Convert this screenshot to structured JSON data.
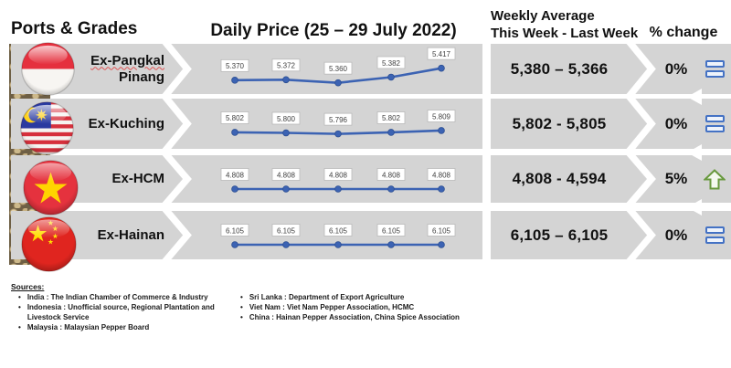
{
  "title": {
    "ports_grades": "Ports & Grades",
    "daily_price": "Daily Price (25 – 29 July 2022)",
    "weekly_avg_line1": "Weekly Average",
    "weekly_avg_line2": "This Week - Last Week",
    "pct_change": "% change"
  },
  "colors": {
    "band_gray": "#d4d4d4",
    "line_blue": "#3c63b3",
    "equal_icon_blue": "#4472c4",
    "up_arrow_green": "#68993e"
  },
  "chart_data": {
    "type": "line",
    "title": "Daily Price (25 – 29 July 2022)",
    "legend": "none",
    "x_axis": "5 trading days, unlabeled ticks",
    "line_color": "#3c63b3",
    "series": [
      {
        "name": "Ex-Pangkal Pinang",
        "name_lines": [
          "Ex-Pangkal",
          "Pinang"
        ],
        "flag": "indonesia",
        "values": [
          5370,
          5372,
          5360,
          5382,
          5417
        ],
        "point_labels": [
          "5.370",
          "5.372",
          "5.360",
          "5.382",
          "5.417"
        ],
        "weekly_average": "5,380 – 5,366",
        "pct_change": "0%",
        "trend": "equal"
      },
      {
        "name": "Ex-Kuching",
        "name_lines": [
          "Ex-Kuching",
          ""
        ],
        "flag": "malaysia",
        "values": [
          5802,
          5800,
          5796,
          5802,
          5809
        ],
        "point_labels": [
          "5.802",
          "5.800",
          "5.796",
          "5.802",
          "5.809"
        ],
        "weekly_average": "5,802 - 5,805",
        "pct_change": "0%",
        "trend": "equal"
      },
      {
        "name": "Ex-HCM",
        "name_lines": [
          "Ex-HCM",
          ""
        ],
        "flag": "vietnam",
        "values": [
          4808,
          4808,
          4808,
          4808,
          4808
        ],
        "point_labels": [
          "4.808",
          "4.808",
          "4.808",
          "4.808",
          "4.808"
        ],
        "weekly_average": "4,808 - 4,594",
        "pct_change": "5%",
        "trend": "up"
      },
      {
        "name": "Ex-Hainan",
        "name_lines": [
          "Ex-Hainan",
          ""
        ],
        "flag": "china",
        "values": [
          6105,
          6105,
          6105,
          6105,
          6105
        ],
        "point_labels": [
          "6.105",
          "6.105",
          "6.105",
          "6.105",
          "6.105"
        ],
        "weekly_average": "6,105 – 6,105",
        "pct_change": "0%",
        "trend": "equal"
      }
    ]
  },
  "footer": {
    "sources_label": "Sources:",
    "left": [
      "India : The Indian Chamber of Commerce & Industry",
      "Indonesia : Unofficial source, Regional Plantation and Livestock Service",
      "Malaysia : Malaysian Pepper Board"
    ],
    "right": [
      "Sri Lanka : Department of Export Agriculture",
      "Viet Nam : Viet Nam Pepper Association, HCMC",
      "China : Hainan Pepper Association, China Spice Association"
    ]
  }
}
